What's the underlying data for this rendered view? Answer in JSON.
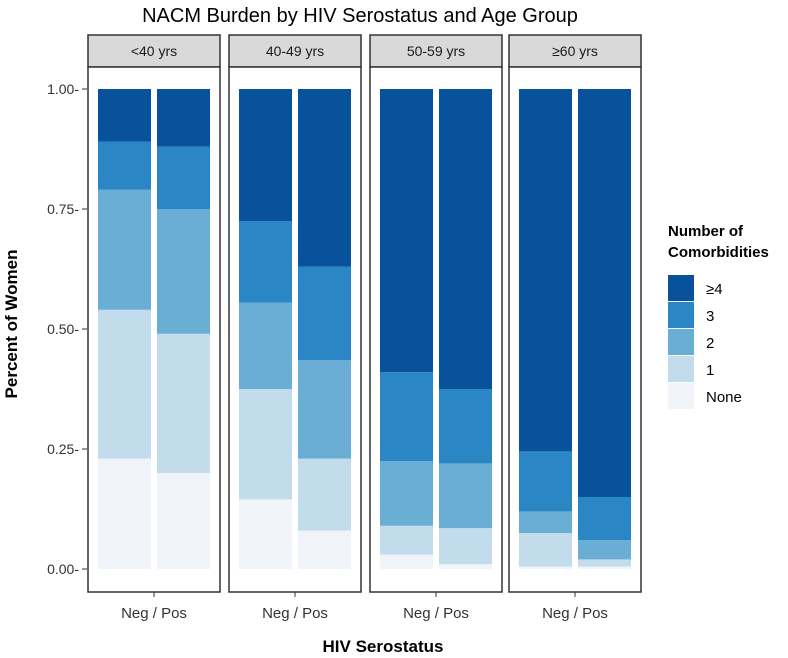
{
  "chart_data": {
    "type": "bar",
    "stacked": true,
    "normalized": true,
    "title": "NACM Burden by HIV Serostatus and Age Group",
    "xlabel": "HIV Serostatus",
    "ylabel": "Percent of Women",
    "ylim": [
      0,
      1
    ],
    "yticks": [
      0.0,
      0.25,
      0.5,
      0.75,
      1.0
    ],
    "ytick_labels": [
      "0.00-",
      "0.25-",
      "0.50-",
      "0.75-",
      "1.00-"
    ],
    "x_category_label": "Neg / Pos",
    "categories": [
      "Neg",
      "Pos"
    ],
    "legend": {
      "title_line1": "Number of",
      "title_line2": "Comorbidities",
      "position": "right"
    },
    "series": [
      {
        "name": "None",
        "color": "#f0f4f9"
      },
      {
        "name": "1",
        "color": "#c2dcec"
      },
      {
        "name": "2",
        "color": "#6aaed6"
      },
      {
        "name": "3",
        "color": "#2b86c5"
      },
      {
        "name": "≥4",
        "color": "#08529c"
      }
    ],
    "facets": [
      {
        "label": "<40 yrs",
        "bars": [
          {
            "category": "Neg",
            "values": [
              0.23,
              0.31,
              0.25,
              0.1,
              0.11
            ]
          },
          {
            "category": "Pos",
            "values": [
              0.2,
              0.29,
              0.26,
              0.13,
              0.12
            ]
          }
        ]
      },
      {
        "label": "40-49 yrs",
        "bars": [
          {
            "category": "Neg",
            "values": [
              0.145,
              0.23,
              0.18,
              0.17,
              0.275
            ]
          },
          {
            "category": "Pos",
            "values": [
              0.08,
              0.15,
              0.205,
              0.195,
              0.37
            ]
          }
        ]
      },
      {
        "label": "50-59 yrs",
        "bars": [
          {
            "category": "Neg",
            "values": [
              0.03,
              0.06,
              0.135,
              0.185,
              0.59
            ]
          },
          {
            "category": "Pos",
            "values": [
              0.01,
              0.075,
              0.135,
              0.155,
              0.625
            ]
          }
        ]
      },
      {
        "label": "≥60 yrs",
        "bars": [
          {
            "category": "Neg",
            "values": [
              0.005,
              0.07,
              0.045,
              0.125,
              0.755
            ]
          },
          {
            "category": "Pos",
            "values": [
              0.005,
              0.015,
              0.04,
              0.09,
              0.85
            ]
          }
        ]
      }
    ]
  }
}
